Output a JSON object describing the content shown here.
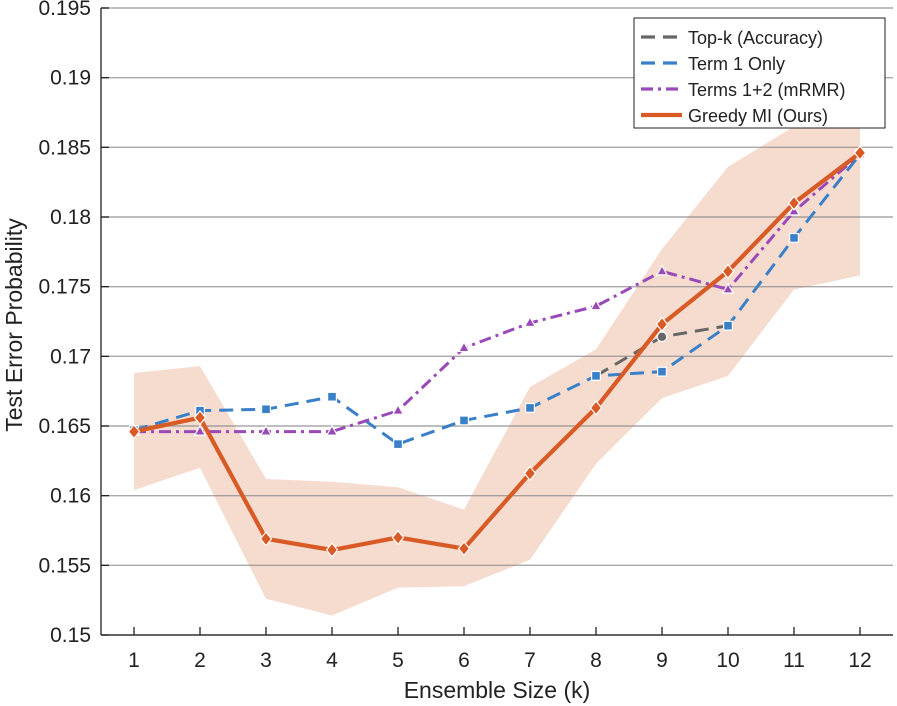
{
  "chart_data": {
    "type": "line",
    "xlabel": "Ensemble Size (k)",
    "ylabel": "Test Error Probability",
    "x": [
      1,
      2,
      3,
      4,
      5,
      6,
      7,
      8,
      9,
      10,
      11,
      12
    ],
    "xlim": [
      0.5,
      12.5
    ],
    "ylim": [
      0.15,
      0.195
    ],
    "yticks": [
      0.15,
      0.155,
      0.16,
      0.165,
      0.17,
      0.175,
      0.18,
      0.185,
      0.19,
      0.195
    ],
    "ytick_labels": [
      "0.15",
      "0.155",
      "0.16",
      "0.165",
      "0.17",
      "0.175",
      "0.18",
      "0.185",
      "0.19",
      "0.195"
    ],
    "grid": "horizontal",
    "legend_position": "top-right",
    "series": [
      {
        "name": "Top-k (Accuracy)",
        "color": "#666666",
        "dash": "dashed",
        "marker": "circle",
        "x": [
          8,
          9,
          10
        ],
        "values": [
          0.1686,
          0.1714,
          0.1722
        ],
        "marker_x": [
          9
        ],
        "marker_values": [
          0.1714
        ]
      },
      {
        "name": "Term 1 Only",
        "color": "#3a80c8",
        "dash": "dashed",
        "marker": "square",
        "x": [
          1,
          2,
          3,
          4,
          5,
          6,
          7,
          8,
          9,
          10,
          11,
          12
        ],
        "values": [
          0.1647,
          0.1661,
          0.1662,
          0.1671,
          0.1637,
          0.1654,
          0.1663,
          0.1686,
          0.1689,
          0.1722,
          0.1785,
          0.1845
        ]
      },
      {
        "name": "Terms 1+2 (mRMR)",
        "color": "#9a4ab8",
        "dash": "dashdot",
        "marker": "triangle",
        "x": [
          1,
          2,
          3,
          4,
          5,
          6,
          7,
          8,
          9,
          10,
          11,
          12
        ],
        "values": [
          0.1646,
          0.1646,
          0.1646,
          0.1646,
          0.1661,
          0.1706,
          0.1724,
          0.1736,
          0.1761,
          0.1748,
          0.1804,
          0.1845
        ]
      },
      {
        "name": "Greedy MI (Ours)",
        "color": "#d85a25",
        "dash": "solid",
        "marker": "diamond",
        "x": [
          1,
          2,
          3,
          4,
          5,
          6,
          7,
          8,
          9,
          10,
          11,
          12
        ],
        "values": [
          0.1646,
          0.1656,
          0.1569,
          0.1561,
          0.157,
          0.1562,
          0.1616,
          0.1663,
          0.1723,
          0.1761,
          0.181,
          0.1846
        ],
        "band_upper": [
          0.1688,
          0.1693,
          0.1612,
          0.161,
          0.1606,
          0.159,
          0.1678,
          0.1705,
          0.1777,
          0.1836,
          0.1865,
          0.1868
        ],
        "band_lower": [
          0.1604,
          0.162,
          0.1526,
          0.1514,
          0.1534,
          0.1535,
          0.1554,
          0.1623,
          0.167,
          0.1686,
          0.1748,
          0.1758
        ]
      }
    ]
  }
}
